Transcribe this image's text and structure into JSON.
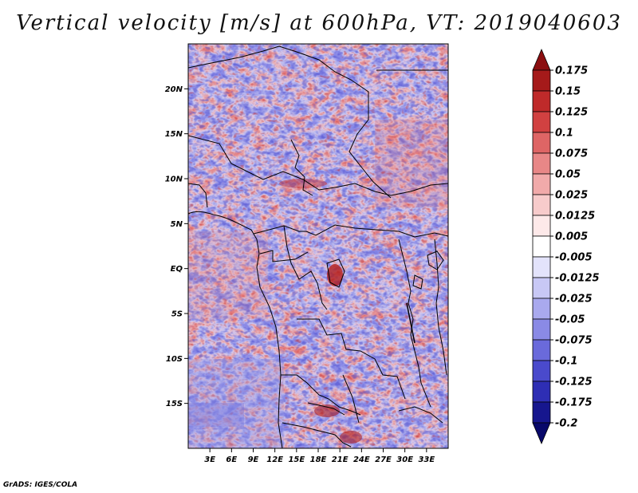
{
  "title": "Vertical velocity [m/s] at 600hPa, VT: 2019040603",
  "credit": "GrADS: IGES/COLA",
  "map": {
    "lon_range": [
      0,
      36
    ],
    "lat_range": [
      -20,
      25
    ],
    "lat_labels": [
      "20N",
      "15N",
      "10N",
      "5N",
      "EQ",
      "5S",
      "10S",
      "15S"
    ],
    "lat_values": [
      20,
      15,
      10,
      5,
      0,
      -5,
      -10,
      -15
    ],
    "lon_labels": [
      "3E",
      "6E",
      "9E",
      "12E",
      "15E",
      "18E",
      "21E",
      "24E",
      "27E",
      "30E",
      "33E"
    ],
    "lon_values": [
      3,
      6,
      9,
      12,
      15,
      18,
      21,
      24,
      27,
      30,
      33
    ]
  },
  "colorbar": {
    "levels": [
      "0.175",
      "0.15",
      "0.125",
      "0.1",
      "0.075",
      "0.05",
      "0.025",
      "0.0125",
      "0.005",
      "-0.005",
      "-0.0125",
      "-0.025",
      "-0.05",
      "-0.075",
      "-0.1",
      "-0.125",
      "-0.175",
      "-0.2"
    ],
    "colors": [
      "#8b0e10",
      "#a51a1a",
      "#bf2a2a",
      "#d14141",
      "#de6565",
      "#e88787",
      "#f1aaaa",
      "#f7cbcb",
      "#fde9e9",
      "#ffffff",
      "#e3e3fb",
      "#c8c8f5",
      "#a9a9ee",
      "#8a8ae6",
      "#6a6adb",
      "#4a4acc",
      "#2e2eb4",
      "#16168e",
      "#08086a"
    ]
  }
}
